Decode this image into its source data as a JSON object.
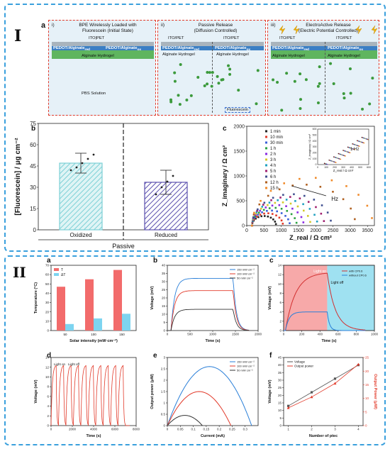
{
  "figure": {
    "section_I": "I",
    "section_II": "II"
  },
  "schematic": {
    "label": "a",
    "panels": [
      {
        "num": "i)",
        "title": "BPE Wirelessly Loaded with\nFluorescein (Initial State)"
      },
      {
        "num": "ii)",
        "title": "Passive Release\n(Diffusion Controlled)"
      },
      {
        "num": "iii)",
        "title": "ElectroActive Release\n(Electric Potential Controlled)"
      }
    ],
    "ito_pet": "ITO/PET",
    "ito_pet_split": "ITO|PET",
    "pedot_red": "PEDOT/Alginate",
    "pedot_red_sub": "red",
    "pedot_ox_sub": "ox",
    "alginate": "Alginate Hydrogel",
    "pbs": "PBS Solution",
    "fluorescein": "Fluorescein",
    "colors": {
      "blue_layer": "#3b7fc4",
      "green_gel": "#5fb55f",
      "bg": "#e6f1f8",
      "border": "#e23a2a"
    }
  },
  "chart_data": [
    {
      "id": "Ib",
      "label": "b",
      "type": "bar",
      "categories": [
        "Oxidized",
        "Reduced"
      ],
      "group_label": "Passive",
      "values": [
        47,
        33.5
      ],
      "errors": [
        7,
        8.5
      ],
      "points": [
        [
          42,
          44,
          47,
          50,
          53
        ],
        [
          25,
          30,
          34,
          38
        ]
      ],
      "ylabel": "[Fluorescein] / μg cm⁻²",
      "ylim": [
        0,
        75
      ],
      "yticks": [
        0,
        15,
        30,
        45,
        60,
        75
      ],
      "colors": [
        "#7dd0d6",
        "#5a4fae"
      ]
    },
    {
      "id": "Ic",
      "label": "c",
      "type": "scatter",
      "xlabel": "Z_real / Ω cm²",
      "ylabel": "Z_imaginary / Ω cm²",
      "xlim": [
        0,
        3700
      ],
      "ylim": [
        0,
        2000
      ],
      "xticks": [
        0,
        500,
        1000,
        1500,
        2000,
        2500,
        3000,
        3500
      ],
      "yticks": [
        0,
        500,
        1000,
        1500,
        2000
      ],
      "series": [
        {
          "name": "1 min",
          "color": "#222222",
          "width": 700
        },
        {
          "name": "10 min",
          "color": "#e23a2a",
          "width": 900
        },
        {
          "name": "30 min",
          "color": "#3a5fd8",
          "width": 1100
        },
        {
          "name": "1 h",
          "color": "#2aa040",
          "width": 1300
        },
        {
          "name": "2 h",
          "color": "#8a2be2",
          "width": 1500
        },
        {
          "name": "3 h",
          "color": "#d4c92a",
          "width": 1700
        },
        {
          "name": "4 h",
          "color": "#1fa0c0",
          "width": 1900
        },
        {
          "name": "5 h",
          "color": "#a02070",
          "width": 2100
        },
        {
          "name": "6 h",
          "color": "#405090",
          "width": 2300
        },
        {
          "name": "12 h",
          "color": "#b06020",
          "width": 3000
        },
        {
          "name": "15 h",
          "color": "#f08a2a",
          "width": 3500
        }
      ],
      "annotation": "Hz",
      "inset": {
        "xlabel": "Z_real / Ω cm²",
        "ylabel": "Z_imaginary / Ω cm²",
        "xticks": [
          0,
          100,
          200,
          300,
          400,
          500,
          600
        ],
        "yticks": [
          0,
          100,
          200,
          300,
          400,
          500,
          600
        ],
        "annotation": "1 Hz"
      }
    },
    {
      "id": "IIa",
      "label": "a",
      "type": "bar",
      "categories": [
        "50",
        "100",
        "150"
      ],
      "series": [
        {
          "name": "T",
          "values": [
            47,
            55,
            65
          ],
          "color": "#f26b6b"
        },
        {
          "name": "ΔT",
          "values": [
            7,
            13,
            18
          ],
          "color": "#7dd4f0"
        }
      ],
      "xlabel": "Solar intensity (mW·cm⁻²)",
      "ylabel": "Temperature (°C)",
      "ylim": [
        0,
        70
      ],
      "yticks": [
        0,
        10,
        20,
        30,
        40,
        50,
        60,
        70
      ]
    },
    {
      "id": "IIb",
      "label": "b",
      "type": "line",
      "xlabel": "Time (s)",
      "ylabel": "Voltage (mV)",
      "xlim": [
        0,
        2000
      ],
      "ylim": [
        0,
        40
      ],
      "xticks": [
        0,
        500,
        1000,
        1500,
        2000
      ],
      "yticks": [
        0,
        5,
        10,
        15,
        20,
        25,
        30,
        35,
        40
      ],
      "series": [
        {
          "name": "150 mW cm⁻²",
          "plateau": 32,
          "color": "#2a7fd8"
        },
        {
          "name": "100 mW cm⁻²",
          "plateau": 24.5,
          "color": "#e23a2a"
        },
        {
          "name": "50 mW cm⁻²",
          "plateau": 13,
          "color": "#333333"
        }
      ]
    },
    {
      "id": "IIc",
      "label": "c",
      "type": "line",
      "xlabel": "Time (s)",
      "ylabel": "Voltage (mV)",
      "xlim": [
        0,
        1000
      ],
      "ylim": [
        0,
        14
      ],
      "xticks": [
        0,
        200,
        400,
        600,
        800,
        1000
      ],
      "yticks": [
        0,
        2,
        4,
        6,
        8,
        10,
        12,
        14
      ],
      "annotations": [
        "Light on",
        "Light off"
      ],
      "series": [
        {
          "name": "with CP0.6",
          "plateau": 12.5,
          "color": "#d23030"
        },
        {
          "name": "without CP0.6",
          "plateau": 4,
          "color": "#2a7fd8"
        }
      ]
    },
    {
      "id": "IId",
      "label": "d",
      "type": "line",
      "xlabel": "Time (s)",
      "ylabel": "Voltage (mV)",
      "xlim": [
        0,
        8000
      ],
      "ylim": [
        0,
        14
      ],
      "xticks": [
        0,
        2000,
        4000,
        6000,
        8000
      ],
      "yticks": [
        0,
        2,
        4,
        6,
        8,
        10,
        12,
        14
      ],
      "annotations": [
        "Light on",
        "Light off"
      ],
      "cycles": 10,
      "peak": 12.5,
      "series": [
        {
          "name": "",
          "color": "#e23a2a"
        }
      ]
    },
    {
      "id": "IIe",
      "label": "e",
      "type": "line",
      "xlabel": "Current (mA)",
      "ylabel": "Output power (μW)",
      "xlim": [
        0,
        0.35
      ],
      "ylim": [
        0,
        3
      ],
      "xticks": [
        0,
        0.05,
        0.1,
        0.15,
        0.2,
        0.25,
        0.3
      ],
      "yticks": [
        0,
        0.5,
        1,
        1.5,
        2,
        2.5,
        3
      ],
      "series": [
        {
          "name": "150 mW cm⁻²",
          "xmax": 0.325,
          "peak": 2.6,
          "color": "#2a7fd8"
        },
        {
          "name": "100 mW cm⁻²",
          "xmax": 0.245,
          "peak": 1.5,
          "color": "#e23a2a"
        },
        {
          "name": "50 mW cm⁻²",
          "xmax": 0.135,
          "peak": 0.45,
          "color": "#333333"
        }
      ]
    },
    {
      "id": "IIf",
      "label": "f",
      "type": "line",
      "xlabel": "Number of ptec",
      "ylabel": "Voltage (mV)",
      "ylabel_right": "Output Power (μW)",
      "x": [
        1,
        2,
        3,
        4
      ],
      "xlim": [
        0.8,
        4.2
      ],
      "ylim": [
        0,
        45
      ],
      "yticks": [
        0,
        5,
        10,
        15,
        20,
        25,
        30,
        35,
        40,
        45
      ],
      "ylim_right": [
        0,
        25
      ],
      "yticks_right": [
        0,
        5,
        10,
        15,
        20,
        25
      ],
      "series": [
        {
          "name": "Voltage",
          "values": [
            13,
            22,
            31,
            40
          ],
          "color": "#555555",
          "marker": "square"
        },
        {
          "name": "Output power",
          "values": [
            6.5,
            10.5,
            15.5,
            22.5
          ],
          "color": "#e23a2a",
          "marker": "triangle"
        }
      ]
    }
  ]
}
